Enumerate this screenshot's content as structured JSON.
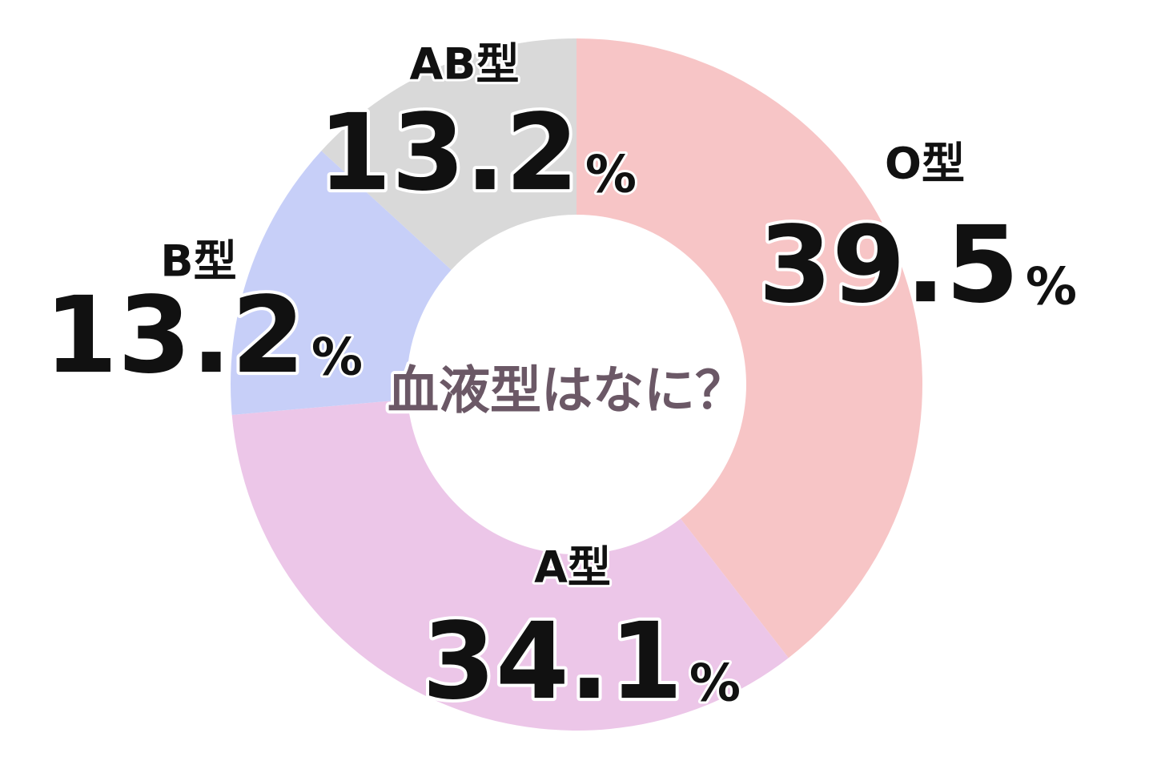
{
  "chart_data": {
    "type": "donut",
    "title": "血液型はなに？",
    "categories": [
      "O型",
      "A型",
      "B型",
      "AB型"
    ],
    "values": [
      39.5,
      34.1,
      13.2,
      13.2
    ],
    "unit": "%",
    "colors": [
      "#f7c5c6",
      "#ecc6e8",
      "#c7cff8",
      "#d9d9d9"
    ]
  }
}
